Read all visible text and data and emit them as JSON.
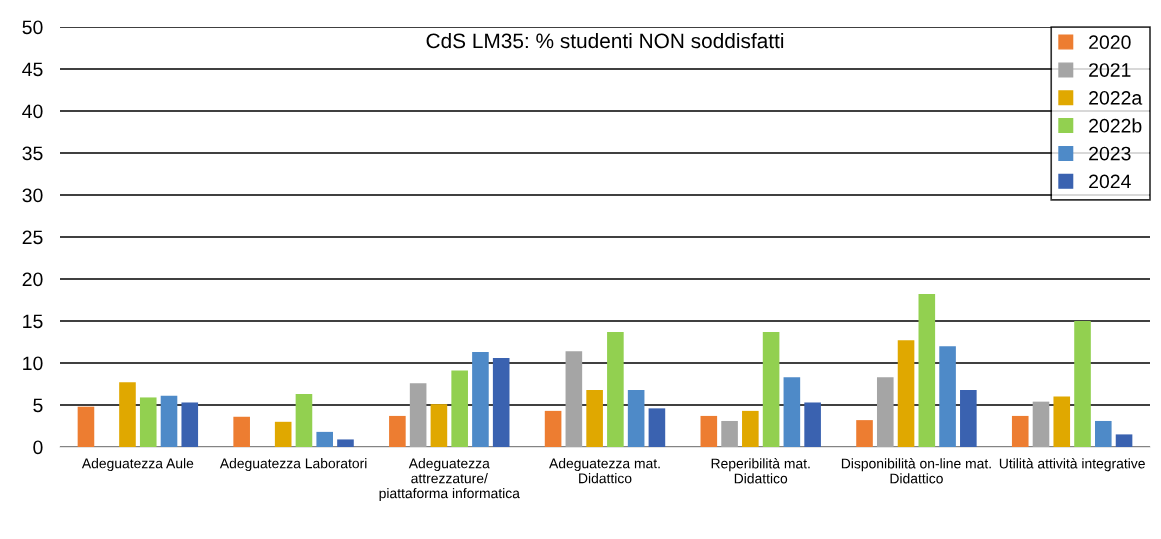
{
  "chart_data": {
    "type": "bar",
    "title": "CdS LM35: % studenti NON soddisfatti",
    "categories": [
      "Adeguatezza Aule",
      "Adeguatezza Laboratori",
      "Adeguatezza\nattrezzature/\npiattaforma informatica",
      "Adeguatezza mat.\nDidattico",
      "Reperibilità mat.\nDidattico",
      "Disponibilità on-line mat.\nDidattico",
      "Utilità attività integrative"
    ],
    "series": [
      {
        "name": "2020",
        "color": "#ed7d31",
        "values": [
          4.8,
          3.6,
          3.7,
          4.3,
          3.7,
          3.2,
          3.7
        ]
      },
      {
        "name": "2021",
        "color": "#a5a5a5",
        "values": [
          null,
          null,
          7.6,
          11.4,
          3.1,
          8.3,
          5.4
        ]
      },
      {
        "name": "2022a",
        "color": "#e0a800",
        "values": [
          7.7,
          3.0,
          5.1,
          6.8,
          4.3,
          12.7,
          6.0
        ]
      },
      {
        "name": "2022b",
        "color": "#92d050",
        "values": [
          5.9,
          6.3,
          9.1,
          13.7,
          13.7,
          18.2,
          15.0
        ]
      },
      {
        "name": "2023",
        "color": "#4e8ac8",
        "values": [
          6.1,
          1.8,
          11.3,
          6.8,
          8.3,
          12.0,
          3.1
        ]
      },
      {
        "name": "2024",
        "color": "#3a62b0",
        "values": [
          5.3,
          0.9,
          10.6,
          4.6,
          5.3,
          6.8,
          1.5
        ]
      }
    ],
    "ylim": [
      0,
      50
    ],
    "yticks": [
      0,
      5,
      10,
      15,
      20,
      25,
      30,
      35,
      40,
      45,
      50
    ],
    "grid": "y",
    "legend": "top right"
  }
}
